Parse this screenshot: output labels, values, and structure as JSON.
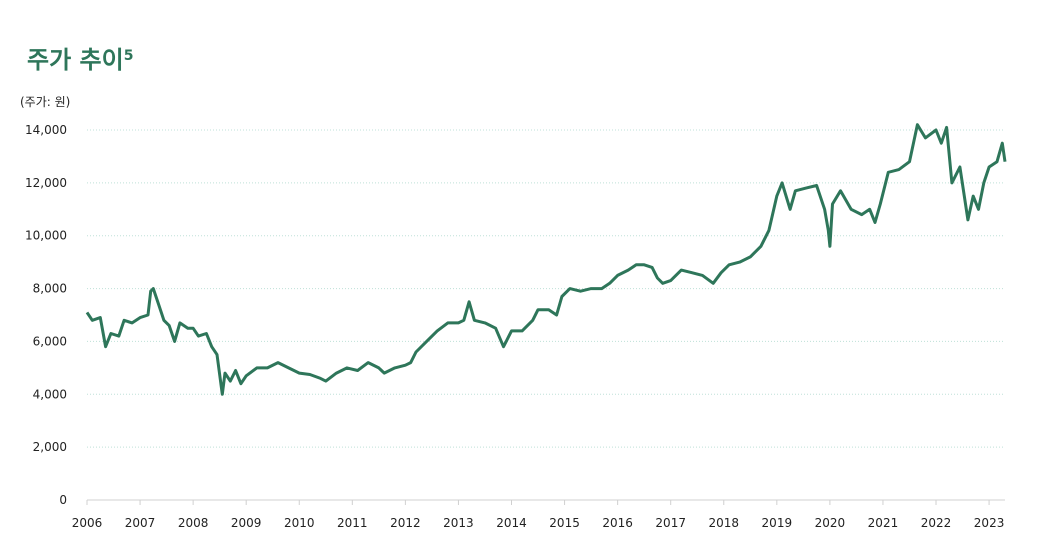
{
  "chart_data": {
    "type": "line",
    "title": "주가 추이",
    "title_footnote": "5",
    "y_label": "(주가: 원)",
    "xlim": [
      2006,
      2023.3
    ],
    "xticks": [
      2006,
      2007,
      2008,
      2009,
      2010,
      2011,
      2012,
      2013,
      2014,
      2015,
      2016,
      2017,
      2018,
      2019,
      2020,
      2021,
      2022,
      2023
    ],
    "ylim": [
      0,
      14000
    ],
    "yticks": [
      0,
      {
        "value": 2000,
        "label": "2,000"
      },
      {
        "value": 4000,
        "label": "4,000"
      },
      {
        "value": 6000,
        "label": "6,000"
      },
      {
        "value": 8000,
        "label": "8,000"
      },
      {
        "value": 10000,
        "label": "10,000"
      },
      {
        "value": 12000,
        "label": "12,000"
      },
      {
        "value": 14000,
        "label": "14,000"
      }
    ],
    "grid": true,
    "series": [
      {
        "color": "#2e765a",
        "x": [
          2006.0,
          2006.1,
          2006.25,
          2006.35,
          2006.45,
          2006.6,
          2006.7,
          2006.85,
          2007.0,
          2007.15,
          2007.2,
          2007.25,
          2007.35,
          2007.45,
          2007.55,
          2007.65,
          2007.75,
          2007.9,
          2008.0,
          2008.1,
          2008.25,
          2008.35,
          2008.45,
          2008.55,
          2008.6,
          2008.7,
          2008.8,
          2008.9,
          2009.0,
          2009.2,
          2009.4,
          2009.6,
          2009.8,
          2010.0,
          2010.2,
          2010.4,
          2010.5,
          2010.7,
          2010.9,
          2011.1,
          2011.3,
          2011.5,
          2011.6,
          2011.8,
          2012.0,
          2012.1,
          2012.2,
          2012.4,
          2012.6,
          2012.8,
          2013.0,
          2013.1,
          2013.2,
          2013.3,
          2013.5,
          2013.7,
          2013.85,
          2013.9,
          2014.0,
          2014.2,
          2014.4,
          2014.5,
          2014.7,
          2014.85,
          2014.95,
          2015.1,
          2015.3,
          2015.5,
          2015.7,
          2015.85,
          2016.0,
          2016.2,
          2016.35,
          2016.5,
          2016.65,
          2016.75,
          2016.85,
          2017.0,
          2017.2,
          2017.4,
          2017.6,
          2017.8,
          2017.95,
          2018.1,
          2018.3,
          2018.5,
          2018.7,
          2018.85,
          2019.0,
          2019.1,
          2019.25,
          2019.35,
          2019.55,
          2019.75,
          2019.9,
          2019.97,
          2020.0,
          2020.05,
          2020.2,
          2020.4,
          2020.6,
          2020.75,
          2020.85,
          2020.95,
          2021.1,
          2021.3,
          2021.5,
          2021.65,
          2021.8,
          2022.0,
          2022.1,
          2022.2,
          2022.3,
          2022.45,
          2022.6,
          2022.7,
          2022.8,
          2022.9,
          2023.0,
          2023.15,
          2023.25,
          2023.3
        ],
        "values": [
          7100,
          6800,
          6900,
          5800,
          6300,
          6200,
          6800,
          6700,
          6900,
          7000,
          7900,
          8000,
          7400,
          6800,
          6600,
          6000,
          6700,
          6500,
          6500,
          6200,
          6300,
          5800,
          5500,
          4000,
          4800,
          4500,
          4900,
          4400,
          4700,
          5000,
          5000,
          5200,
          5000,
          4800,
          4750,
          4600,
          4500,
          4800,
          5000,
          4900,
          5200,
          5000,
          4800,
          5000,
          5100,
          5200,
          5600,
          6000,
          6400,
          6700,
          6700,
          6800,
          7500,
          6800,
          6700,
          6500,
          5800,
          6000,
          6400,
          6400,
          6800,
          7200,
          7200,
          7000,
          7700,
          8000,
          7900,
          8000,
          8000,
          8200,
          8500,
          8700,
          8900,
          8900,
          8800,
          8400,
          8200,
          8300,
          8700,
          8600,
          8500,
          8200,
          8600,
          8900,
          9000,
          9200,
          9600,
          10200,
          11500,
          12000,
          11000,
          11700,
          11800,
          11900,
          11000,
          10200,
          9600,
          11200,
          11700,
          11000,
          10800,
          11000,
          10500,
          11200,
          12400,
          12500,
          12800,
          14200,
          13700,
          14000,
          13500,
          14100,
          12000,
          12600,
          10600,
          11500,
          11000,
          12000,
          12600,
          12800,
          13500,
          12800
        ]
      }
    ]
  }
}
